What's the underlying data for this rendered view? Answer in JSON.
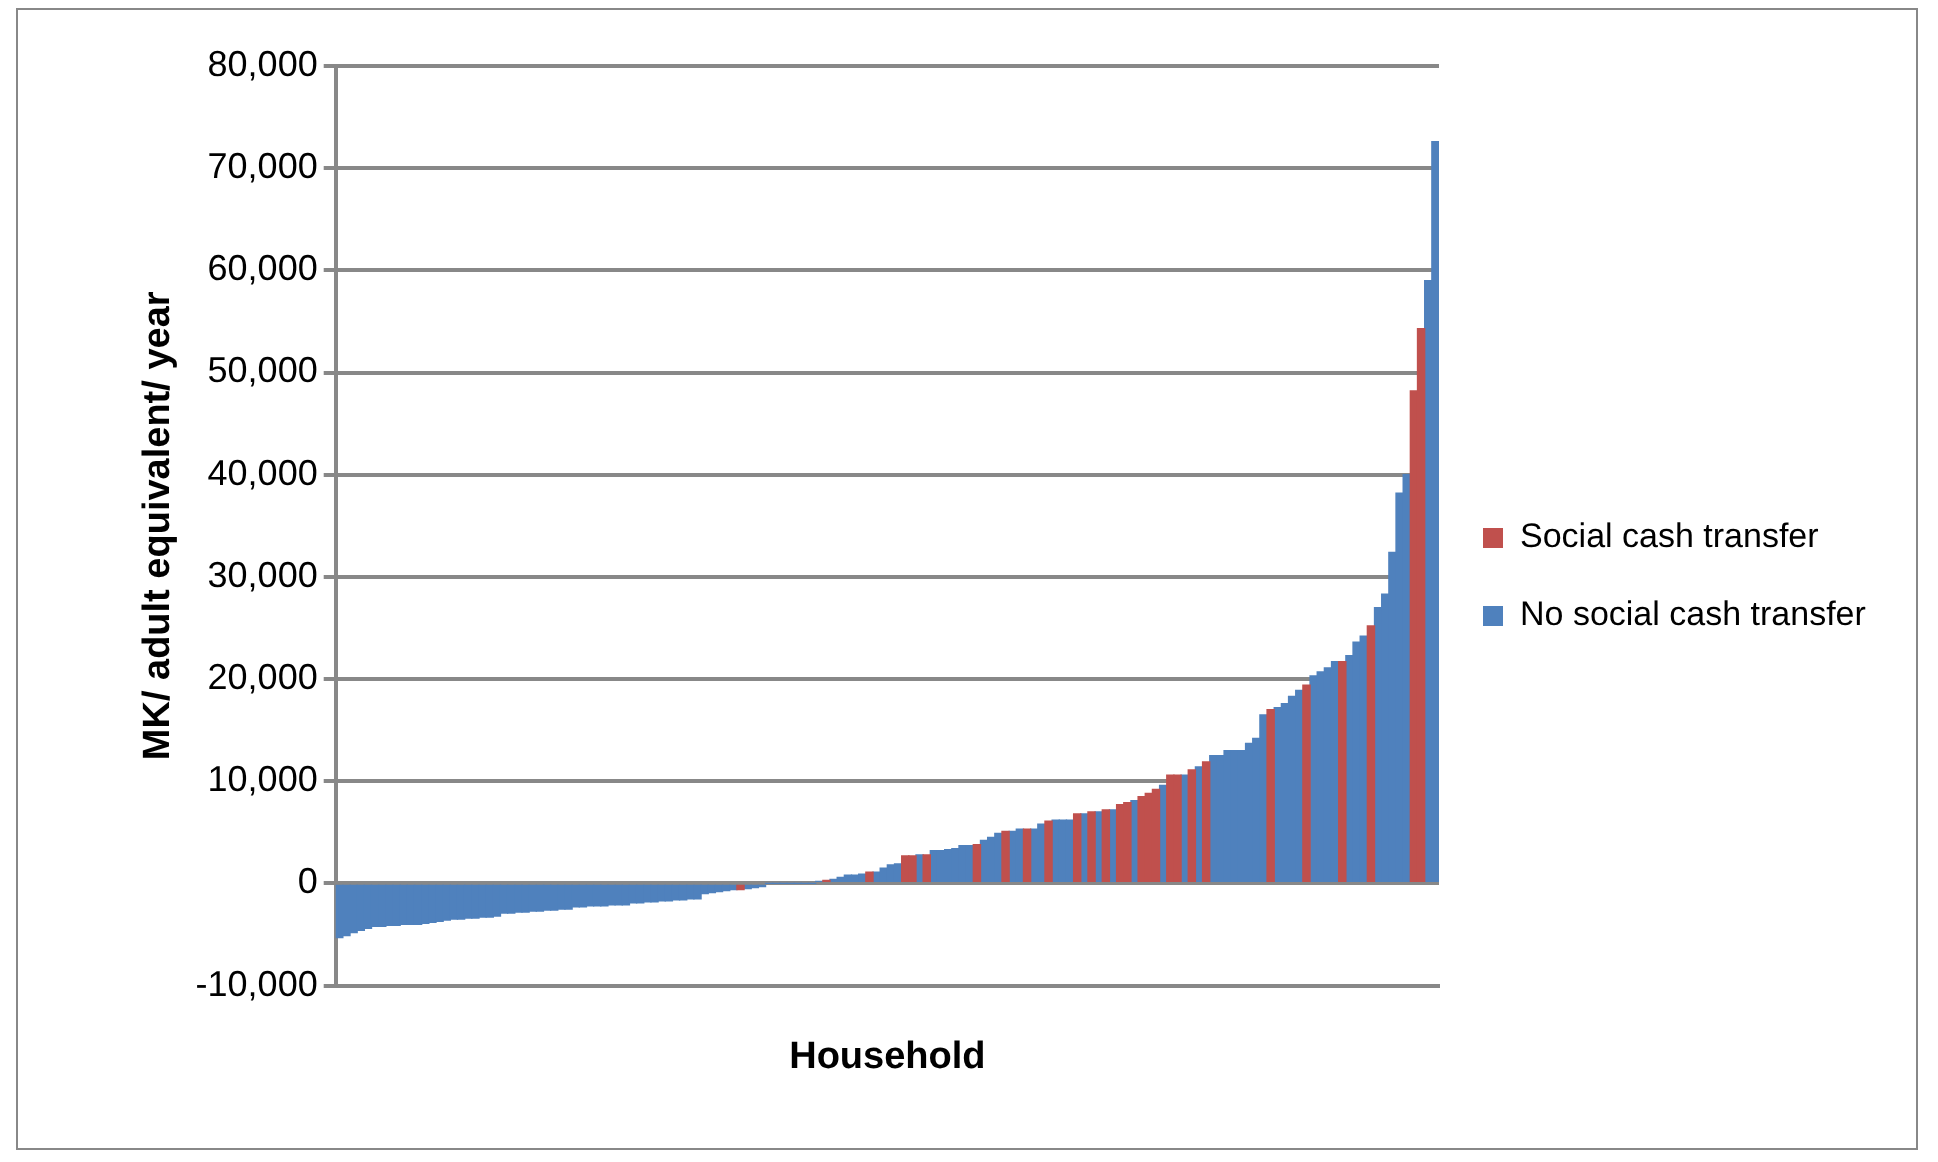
{
  "chart_data": {
    "type": "bar",
    "xlabel": "Household",
    "ylabel": "MK/ adult equivalent/ year",
    "categories": [
      null,
      null,
      null,
      null,
      null,
      null,
      null,
      null,
      null,
      null,
      null,
      null,
      null,
      null,
      null,
      null,
      null,
      null,
      null,
      null,
      null,
      null,
      null,
      null,
      null,
      null,
      null,
      null,
      null,
      null,
      null,
      null,
      null,
      null,
      null,
      null,
      null,
      null,
      null,
      null,
      null,
      null,
      null,
      null,
      null,
      null,
      null,
      null,
      null,
      null,
      null,
      null,
      null,
      null,
      null,
      null,
      null,
      null,
      null,
      null,
      null,
      null,
      null,
      null,
      null,
      null,
      null,
      null,
      null,
      null,
      null,
      null,
      null,
      null,
      null,
      null,
      null,
      null,
      null,
      null,
      null,
      null,
      null,
      null,
      null,
      null,
      null,
      null,
      null,
      null,
      null,
      null,
      null,
      null,
      null,
      null,
      null,
      null,
      null,
      null,
      null,
      null,
      null,
      null,
      null,
      null,
      null,
      null,
      null,
      null,
      null,
      null,
      null,
      null,
      null,
      null,
      null,
      null,
      null,
      null,
      null,
      null,
      null,
      null,
      null,
      null,
      null,
      null,
      null,
      null,
      null,
      null,
      null,
      null,
      null,
      null,
      null,
      null,
      null,
      null,
      null,
      null,
      null,
      null,
      null,
      null,
      null,
      null,
      null,
      null,
      null,
      null,
      null,
      null
    ],
    "series": [
      {
        "name": "Social cash transfer",
        "color": "#c0504d",
        "values": [
          null,
          null,
          null,
          null,
          null,
          null,
          null,
          null,
          null,
          null,
          null,
          null,
          null,
          null,
          null,
          null,
          null,
          null,
          null,
          null,
          null,
          null,
          null,
          null,
          null,
          null,
          null,
          null,
          null,
          null,
          null,
          null,
          null,
          null,
          null,
          null,
          null,
          null,
          null,
          null,
          null,
          null,
          null,
          null,
          null,
          null,
          null,
          null,
          null,
          null,
          null,
          null,
          null,
          null,
          null,
          null,
          -600,
          null,
          null,
          null,
          null,
          null,
          null,
          null,
          null,
          null,
          null,
          null,
          300,
          null,
          null,
          null,
          null,
          null,
          1100,
          null,
          null,
          null,
          null,
          2700,
          2700,
          null,
          2800,
          null,
          null,
          null,
          null,
          null,
          null,
          3800,
          null,
          null,
          null,
          5100,
          null,
          null,
          5300,
          null,
          null,
          6100,
          null,
          null,
          null,
          6800,
          null,
          7000,
          null,
          7200,
          null,
          7700,
          7900,
          null,
          8500,
          8800,
          9200,
          null,
          10600,
          10600,
          null,
          11100,
          null,
          11900,
          null,
          null,
          null,
          null,
          null,
          null,
          null,
          null,
          17000,
          null,
          null,
          null,
          null,
          19400,
          null,
          null,
          null,
          null,
          21700,
          null,
          null,
          null,
          25200,
          null,
          null,
          null,
          null,
          null,
          48200,
          54300,
          null,
          null
        ]
      },
      {
        "name": "No social cash transfer",
        "color": "#4f81bd",
        "values": [
          -5300,
          -5100,
          -4800,
          -4600,
          -4400,
          -4200,
          -4200,
          -4100,
          -4100,
          -4000,
          -4000,
          -4000,
          -3900,
          -3800,
          -3700,
          -3600,
          -3500,
          -3500,
          -3400,
          -3400,
          -3300,
          -3300,
          -3200,
          -2900,
          -2900,
          -2800,
          -2800,
          -2700,
          -2700,
          -2600,
          -2600,
          -2500,
          -2500,
          -2300,
          -2300,
          -2200,
          -2200,
          -2200,
          -2100,
          -2100,
          -2100,
          -1900,
          -1900,
          -1800,
          -1800,
          -1700,
          -1700,
          -1600,
          -1600,
          -1500,
          -1500,
          -1000,
          -900,
          -800,
          -700,
          -600,
          null,
          -500,
          -400,
          -300,
          0,
          0,
          0,
          0,
          0,
          0,
          0,
          200,
          null,
          400,
          600,
          800,
          800,
          900,
          null,
          1100,
          1500,
          1800,
          1900,
          null,
          null,
          2800,
          null,
          3200,
          3200,
          3300,
          3400,
          3700,
          3700,
          null,
          4200,
          4500,
          4900,
          null,
          5100,
          5300,
          null,
          5300,
          5800,
          null,
          6200,
          6200,
          6200,
          null,
          6800,
          null,
          7000,
          null,
          7200,
          null,
          null,
          8100,
          null,
          null,
          null,
          9600,
          null,
          null,
          10600,
          null,
          11400,
          null,
          12500,
          12500,
          13000,
          13000,
          13000,
          13700,
          14200,
          16500,
          null,
          17200,
          17600,
          18300,
          18900,
          null,
          20300,
          20700,
          21100,
          21700,
          null,
          22300,
          23600,
          24200,
          null,
          27000,
          28300,
          32400,
          38200,
          40000,
          null,
          null,
          59000,
          72600
        ]
      }
    ],
    "ylim": [
      -10000,
      80000
    ],
    "yticks": [
      {
        "value": -10000,
        "label": "-10,000"
      },
      0,
      {
        "value": 10000,
        "label": "10,000"
      },
      {
        "value": 20000,
        "label": "20,000"
      },
      {
        "value": 30000,
        "label": "30,000"
      },
      {
        "value": 40000,
        "label": "40,000"
      },
      {
        "value": 50000,
        "label": "50,000"
      },
      {
        "value": 60000,
        "label": "60,000"
      },
      {
        "value": 70000,
        "label": "70,000"
      },
      {
        "value": 80000,
        "label": "80,000"
      }
    ],
    "grid": "y",
    "legend": "right"
  }
}
